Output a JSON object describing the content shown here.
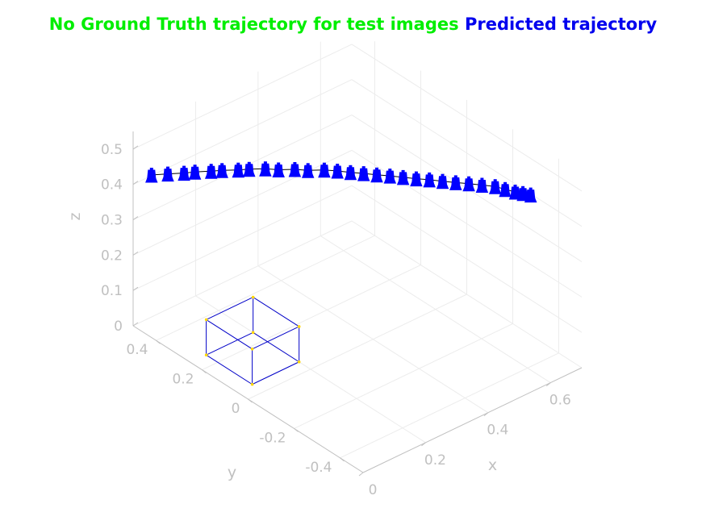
{
  "chart_data": {
    "type": "scatter3d",
    "title_parts": [
      {
        "text": "No Ground Truth trajectory for test images",
        "color": "#00ee00"
      },
      {
        "text": "Predicted trajectory",
        "color": "#0000ee"
      }
    ],
    "xlabel": "x",
    "ylabel": "y",
    "zlabel": "z",
    "xlim": [
      0,
      0.7
    ],
    "ylim": [
      -0.5,
      0.5
    ],
    "zlim": [
      0,
      0.55
    ],
    "xticks": [
      0,
      0.2,
      0.4,
      0.6
    ],
    "xtick_labels": [
      "0",
      "0.2",
      "0.4",
      "0.6"
    ],
    "yticks": [
      -0.4,
      -0.2,
      0,
      0.2,
      0.4
    ],
    "ytick_labels": [
      "-0.4",
      "-0.2",
      "0",
      "0.2",
      "0.4"
    ],
    "zticks": [
      0,
      0.1,
      0.2,
      0.3,
      0.4,
      0.5
    ],
    "ztick_labels": [
      "0",
      "0.1",
      "0.2",
      "0.3",
      "0.4",
      "0.5"
    ],
    "grid": true,
    "colors": {
      "trajectory_line": "#000000",
      "camera_marker": "#0000ff",
      "box": "#0000c8",
      "box_corner": "#ffd700",
      "axis": "#c0c0c0"
    },
    "object_box": {
      "x": [
        0.05,
        0.2
      ],
      "y": [
        0.05,
        0.25
      ],
      "z": [
        0,
        0.1
      ]
    },
    "trajectory": [
      {
        "x": 0.0,
        "y": 0.42,
        "z": 0.46
      },
      {
        "x": 0.03,
        "y": 0.39,
        "z": 0.463
      },
      {
        "x": 0.06,
        "y": 0.36,
        "z": 0.465
      },
      {
        "x": 0.08,
        "y": 0.34,
        "z": 0.468
      },
      {
        "x": 0.11,
        "y": 0.31,
        "z": 0.47
      },
      {
        "x": 0.13,
        "y": 0.29,
        "z": 0.472
      },
      {
        "x": 0.16,
        "y": 0.26,
        "z": 0.473
      },
      {
        "x": 0.18,
        "y": 0.24,
        "z": 0.475
      },
      {
        "x": 0.21,
        "y": 0.21,
        "z": 0.476
      },
      {
        "x": 0.23,
        "y": 0.18,
        "z": 0.477
      },
      {
        "x": 0.26,
        "y": 0.15,
        "z": 0.478
      },
      {
        "x": 0.28,
        "y": 0.12,
        "z": 0.479
      },
      {
        "x": 0.31,
        "y": 0.09,
        "z": 0.48
      },
      {
        "x": 0.33,
        "y": 0.06,
        "z": 0.481
      },
      {
        "x": 0.35,
        "y": 0.03,
        "z": 0.481
      },
      {
        "x": 0.37,
        "y": 0.0,
        "z": 0.482
      },
      {
        "x": 0.39,
        "y": -0.03,
        "z": 0.482
      },
      {
        "x": 0.41,
        "y": -0.06,
        "z": 0.483
      },
      {
        "x": 0.43,
        "y": -0.09,
        "z": 0.483
      },
      {
        "x": 0.45,
        "y": -0.12,
        "z": 0.483
      },
      {
        "x": 0.47,
        "y": -0.15,
        "z": 0.484
      },
      {
        "x": 0.49,
        "y": -0.18,
        "z": 0.484
      },
      {
        "x": 0.51,
        "y": -0.21,
        "z": 0.484
      },
      {
        "x": 0.53,
        "y": -0.24,
        "z": 0.485
      },
      {
        "x": 0.55,
        "y": -0.27,
        "z": 0.485
      },
      {
        "x": 0.57,
        "y": -0.3,
        "z": 0.485
      },
      {
        "x": 0.58,
        "y": -0.33,
        "z": 0.485
      },
      {
        "x": 0.59,
        "y": -0.36,
        "z": 0.486
      },
      {
        "x": 0.6,
        "y": -0.38,
        "z": 0.486
      },
      {
        "x": 0.61,
        "y": -0.4,
        "z": 0.486
      }
    ]
  }
}
